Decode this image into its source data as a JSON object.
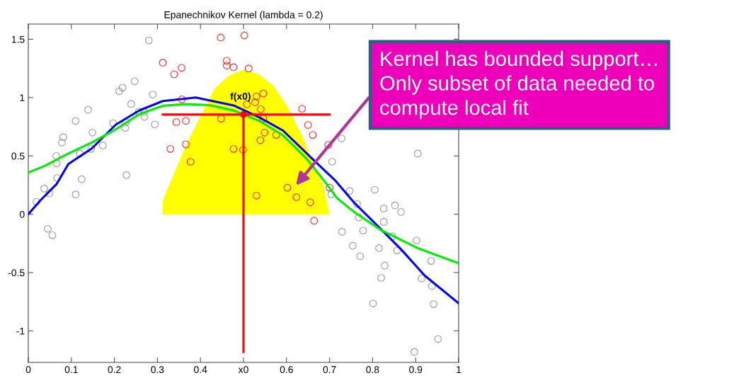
{
  "chart_data": {
    "type": "scatter",
    "title": "Epanechnikov Kernel (lambda = 0.2)",
    "xlim": [
      0,
      1
    ],
    "ylim": [
      -1.27,
      1.63
    ],
    "xticks": [
      0,
      0.1,
      0.2,
      0.3,
      0.4,
      {
        "value": 0.5,
        "label": "x0"
      },
      0.6,
      0.7,
      0.8,
      0.9,
      1
    ],
    "yticks": [
      -1,
      -0.5,
      0,
      0.5,
      1,
      1.5
    ],
    "grid": false,
    "legend": false,
    "series": [
      {
        "type": "area",
        "color": "#ffff00",
        "x": [
          0.3125,
          0.3125,
          0.334,
          0.367,
          0.4,
          0.433,
          0.466,
          0.5,
          0.537,
          0.57,
          0.603,
          0.636,
          0.669,
          0.685,
          0.7
        ],
        "values": [
          0,
          0.12,
          0.31,
          0.596,
          0.84,
          1.08,
          1.19,
          1.24,
          1.2,
          1.1,
          0.92,
          0.676,
          0.373,
          0.26,
          0
        ]
      },
      {
        "marker": "circle",
        "color": "#999999",
        "x": [
          0.019,
          0.037,
          0.049,
          0.11,
          0.045,
          0.056,
          0.28,
          0.247,
          0.219,
          0.211,
          0.289,
          0.239,
          0.139,
          0.257,
          0.269,
          0.27,
          0.11,
          0.197,
          0.227,
          0.225,
          0.294,
          0.149,
          0.081,
          0.078,
          0.173,
          0.146,
          0.12,
          0.065,
          0.066,
          0.067,
          0.124,
          0.228,
          0.728,
          0.706,
          0.905,
          0.747,
          0.805,
          0.704,
          0.764,
          0.826,
          0.852,
          0.866,
          0.768,
          0.826,
          0.729,
          0.778,
          0.846,
          0.902,
          0.754,
          0.815,
          0.857,
          0.771,
          0.936,
          0.828,
          0.82,
          0.914,
          0.938,
          0.801,
          0.942,
          0.952,
          0.897
        ],
        "values": [
          0.107,
          0.22,
          0.18,
          0.17,
          -0.125,
          -0.18,
          1.49,
          1.14,
          1.085,
          1.055,
          1.026,
          0.945,
          0.895,
          0.88,
          0.875,
          0.835,
          0.8,
          0.78,
          0.79,
          0.74,
          0.77,
          0.7,
          0.66,
          0.615,
          0.59,
          0.56,
          0.52,
          0.5,
          0.435,
          0.31,
          0.3,
          0.335,
          0.65,
          0.45,
          0.52,
          0.2,
          0.21,
          0.17,
          0.087,
          0.05,
          0.076,
          0.02,
          -0.027,
          -0.065,
          -0.15,
          -0.14,
          -0.19,
          -0.225,
          -0.27,
          -0.29,
          -0.31,
          -0.36,
          -0.4,
          -0.44,
          -0.545,
          -0.55,
          -0.615,
          -0.765,
          -0.77,
          -1.07,
          -1.18
        ]
      },
      {
        "marker": "circle",
        "color": "#ff2a2a",
        "x": [
          0.3125,
          0.339,
          0.356,
          0.357,
          0.447,
          0.502,
          0.461,
          0.461,
          0.477,
          0.344,
          0.366,
          0.448,
          0.33,
          0.366,
          0.377,
          0.477,
          0.499,
          0.512,
          0.546,
          0.53,
          0.527,
          0.508,
          0.54,
          0.546,
          0.636,
          0.65,
          0.661,
          0.549,
          0.576,
          0.539,
          0.697,
          0.602,
          0.53,
          0.623,
          0.7,
          0.655,
          0.664
        ],
        "values": [
          1.3,
          1.2,
          1.255,
          0.985,
          1.515,
          1.533,
          1.317,
          1.275,
          1.26,
          0.79,
          0.8,
          0.82,
          0.56,
          0.6,
          0.45,
          0.56,
          0.553,
          1.25,
          1.036,
          1.01,
          0.96,
          0.943,
          0.9,
          0.82,
          0.905,
          0.765,
          0.68,
          0.7,
          0.68,
          0.635,
          0.595,
          0.228,
          0.16,
          0.147,
          0.228,
          0.103,
          -0.055
        ]
      },
      {
        "type": "line",
        "color": "#0000ff",
        "x": [
          0,
          0.027,
          0.066,
          0.093,
          0.148,
          0.203,
          0.258,
          0.3125,
          0.389,
          0.477,
          0.537,
          0.592,
          0.663,
          0.713,
          0.757,
          0.817,
          0.866,
          0.921,
          1.0
        ],
        "values": [
          0,
          0.115,
          0.26,
          0.43,
          0.565,
          0.767,
          0.89,
          0.97,
          1.0,
          0.933,
          0.83,
          0.717,
          0.464,
          0.29,
          0.1,
          -0.12,
          -0.3,
          -0.525,
          -0.764
        ]
      },
      {
        "type": "line",
        "color": "#00ee00",
        "x": [
          0,
          0.038,
          0.093,
          0.148,
          0.203,
          0.258,
          0.3125,
          0.367,
          0.422,
          0.477,
          0.537,
          0.592,
          0.647,
          0.691,
          0.717,
          0.757,
          0.817,
          0.866,
          0.905,
          1.0
        ],
        "values": [
          0.358,
          0.414,
          0.52,
          0.616,
          0.727,
          0.858,
          0.93,
          0.945,
          0.935,
          0.89,
          0.8,
          0.676,
          0.475,
          0.27,
          0.14,
          0.02,
          -0.13,
          -0.22,
          -0.29,
          -0.42
        ]
      },
      {
        "type": "line",
        "color": "#ff0000",
        "x": [
          0.3125,
          0.7
        ],
        "values": [
          0.855,
          0.855
        ]
      },
      {
        "type": "line",
        "color": "#ff0000",
        "x": [
          0.5,
          0.5
        ],
        "values": [
          0.855,
          -1.18
        ]
      }
    ],
    "annotations": [
      {
        "text": "f(x0)",
        "x": 0.5,
        "y": 0.855
      },
      "Kernel has bounded support…\nOnly subset of data needed to\ncompute local fit"
    ]
  }
}
